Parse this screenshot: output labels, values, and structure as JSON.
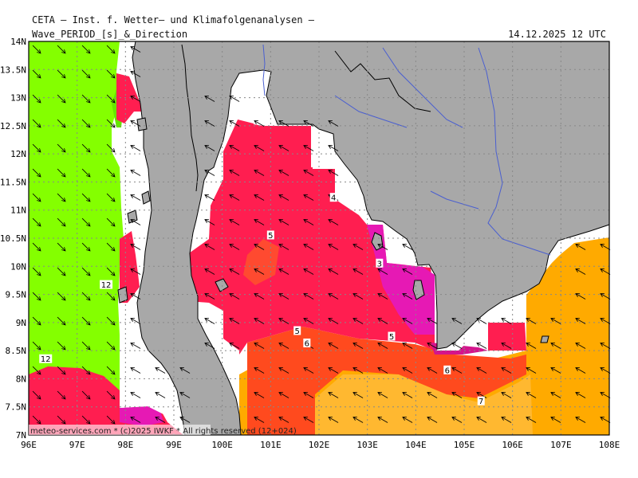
{
  "header": {
    "title": "CETA — Inst. f. Wetter— und Klimafolgenanalysen —",
    "subtitle": "Wave_PERIOD_[s]_&_Direction",
    "datetime": "14.12.2025 12 UTC"
  },
  "axes": {
    "lon_labels": [
      "96E",
      "97E",
      "98E",
      "99E",
      "100E",
      "101E",
      "102E",
      "103E",
      "104E",
      "105E",
      "106E",
      "107E",
      "108E"
    ],
    "lat_labels": [
      "14N",
      "13.5N",
      "13N",
      "12.5N",
      "12N",
      "11.5N",
      "11N",
      "10.5N",
      "10N",
      "9.5N",
      "9N",
      "8.5N",
      "8N",
      "7.5N",
      "7N"
    ]
  },
  "contour_labels": [
    {
      "text": "12",
      "lon": 97.6,
      "lat": 9.67
    },
    {
      "text": "12",
      "lon": 96.35,
      "lat": 8.35
    },
    {
      "text": "4",
      "lon": 102.3,
      "lat": 11.22
    },
    {
      "text": "5",
      "lon": 101.0,
      "lat": 10.55
    },
    {
      "text": "3",
      "lon": 103.25,
      "lat": 10.05
    },
    {
      "text": "5",
      "lon": 101.55,
      "lat": 8.85
    },
    {
      "text": "6",
      "lon": 101.75,
      "lat": 8.63
    },
    {
      "text": "5",
      "lon": 103.5,
      "lat": 8.75
    },
    {
      "text": "6",
      "lon": 104.65,
      "lat": 8.15
    },
    {
      "text": "7",
      "lon": 105.35,
      "lat": 7.6
    }
  ],
  "credit": "meteo-services.com * (c)2025 IWKF * All rights reserved (12+024)",
  "colors": {
    "land": "#a8a8a8",
    "long_period": "#84ff00",
    "mid_period": "#ff1e50",
    "short_period": "#ff4020",
    "orange_period": "#ffaa00",
    "magenta": "#e619b4",
    "river": "#4a5fd0",
    "grid": "#888888"
  }
}
